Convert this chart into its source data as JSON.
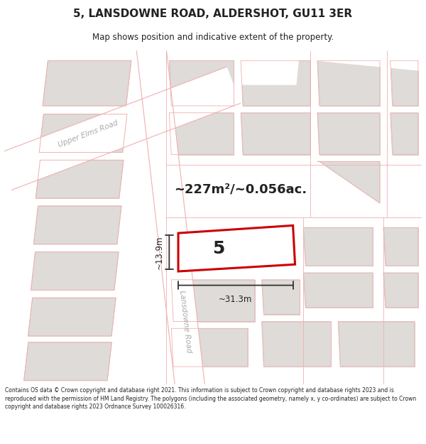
{
  "title": "5, LANSDOWNE ROAD, ALDERSHOT, GU11 3ER",
  "subtitle": "Map shows position and indicative extent of the property.",
  "area_text": "~227m²/~0.056ac.",
  "property_number": "5",
  "width_label": "~31.3m",
  "height_label": "~13.9m",
  "footer_text": "Contains OS data © Crown copyright and database right 2021. This information is subject to Crown copyright and database rights 2023 and is reproduced with the permission of HM Land Registry. The polygons (including the associated geometry, namely x, y co-ordinates) are subject to Crown copyright and database rights 2023 Ordnance Survey 100026316.",
  "bg_color": "#f2f0ed",
  "road_fill": "#ffffff",
  "building_fill": "#dedbd8",
  "building_edge": "#c8c5c2",
  "pink_line": "#f0b0b0",
  "property_fill": "#ffffff",
  "property_edge": "#cc0000",
  "text_dark": "#222222",
  "road_label_color": "#aaaaaa",
  "dim_color": "#333333",
  "footer_bg": "#ffffff",
  "title_bg": "#ffffff"
}
